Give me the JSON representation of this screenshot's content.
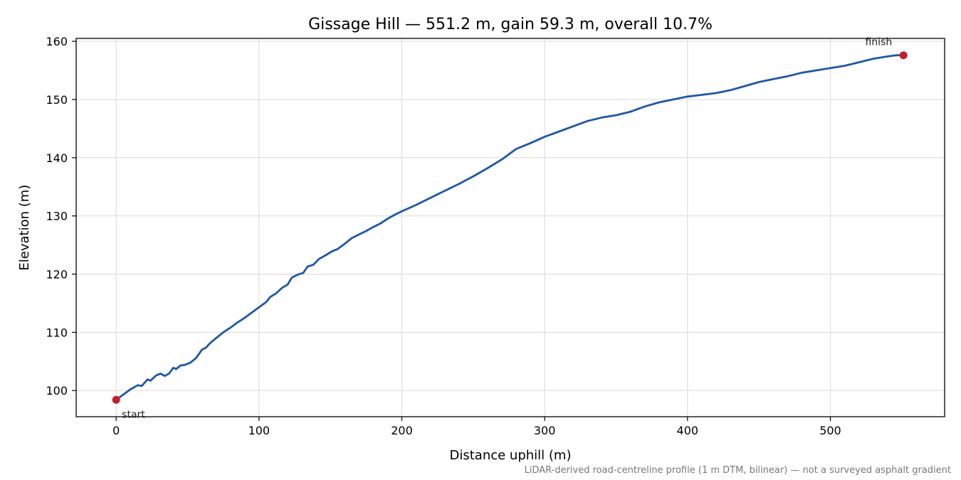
{
  "chart_data": {
    "type": "line",
    "title": "Gissage Hill — 551.2 m, gain 59.3 m, overall 10.7%",
    "xlabel": "Distance uphill (m)",
    "ylabel": "Elevation (m)",
    "xlim": [
      -28,
      580
    ],
    "ylim": [
      95.5,
      160.5
    ],
    "x_ticks": [
      0,
      100,
      200,
      300,
      400,
      500
    ],
    "x_tick_labels": [
      "0",
      "100",
      "200",
      "300",
      "400",
      "500"
    ],
    "y_ticks": [
      100,
      110,
      120,
      130,
      140,
      150,
      160
    ],
    "y_tick_labels": [
      "100",
      "110",
      "120",
      "130",
      "140",
      "150",
      "160"
    ],
    "grid": true,
    "line_color": "#1f57a6",
    "marker_color": "#c41e2a",
    "series": [
      {
        "points": [
          [
            0,
            98.4
          ],
          [
            5,
            99.3
          ],
          [
            10,
            100.2
          ],
          [
            15,
            100.9
          ],
          [
            18,
            100.8
          ],
          [
            22,
            101.9
          ],
          [
            24,
            101.7
          ],
          [
            28,
            102.6
          ],
          [
            31,
            102.9
          ],
          [
            34,
            102.5
          ],
          [
            37,
            102.9
          ],
          [
            40,
            103.9
          ],
          [
            42,
            103.7
          ],
          [
            45,
            104.3
          ],
          [
            48,
            104.4
          ],
          [
            52,
            104.8
          ],
          [
            56,
            105.6
          ],
          [
            60,
            107.0
          ],
          [
            63,
            107.4
          ],
          [
            66,
            108.2
          ],
          [
            70,
            109.0
          ],
          [
            75,
            110.0
          ],
          [
            80,
            110.8
          ],
          [
            85,
            111.7
          ],
          [
            90,
            112.5
          ],
          [
            95,
            113.4
          ],
          [
            100,
            114.3
          ],
          [
            105,
            115.2
          ],
          [
            108,
            116.1
          ],
          [
            112,
            116.7
          ],
          [
            116,
            117.6
          ],
          [
            120,
            118.2
          ],
          [
            123,
            119.4
          ],
          [
            127,
            119.9
          ],
          [
            131,
            120.2
          ],
          [
            134,
            121.3
          ],
          [
            138,
            121.6
          ],
          [
            142,
            122.6
          ],
          [
            147,
            123.3
          ],
          [
            151,
            123.9
          ],
          [
            155,
            124.3
          ],
          [
            160,
            125.2
          ],
          [
            165,
            126.2
          ],
          [
            170,
            126.8
          ],
          [
            175,
            127.4
          ],
          [
            180,
            128.1
          ],
          [
            185,
            128.7
          ],
          [
            190,
            129.5
          ],
          [
            195,
            130.2
          ],
          [
            200,
            130.8
          ],
          [
            210,
            131.9
          ],
          [
            220,
            133.1
          ],
          [
            230,
            134.3
          ],
          [
            240,
            135.5
          ],
          [
            250,
            136.8
          ],
          [
            260,
            138.2
          ],
          [
            270,
            139.7
          ],
          [
            280,
            141.5
          ],
          [
            290,
            142.5
          ],
          [
            300,
            143.6
          ],
          [
            310,
            144.5
          ],
          [
            320,
            145.4
          ],
          [
            330,
            146.3
          ],
          [
            340,
            146.9
          ],
          [
            350,
            147.3
          ],
          [
            360,
            147.9
          ],
          [
            370,
            148.8
          ],
          [
            380,
            149.5
          ],
          [
            390,
            150.0
          ],
          [
            400,
            150.5
          ],
          [
            410,
            150.8
          ],
          [
            420,
            151.1
          ],
          [
            430,
            151.6
          ],
          [
            440,
            152.3
          ],
          [
            450,
            153.0
          ],
          [
            460,
            153.5
          ],
          [
            470,
            154.0
          ],
          [
            480,
            154.6
          ],
          [
            490,
            155.0
          ],
          [
            500,
            155.4
          ],
          [
            510,
            155.8
          ],
          [
            520,
            156.4
          ],
          [
            530,
            157.0
          ],
          [
            540,
            157.4
          ],
          [
            546,
            157.6
          ],
          [
            551.2,
            157.6
          ]
        ]
      }
    ],
    "markers": [
      {
        "x": 0,
        "y": 98.4,
        "label": "start"
      },
      {
        "x": 551.2,
        "y": 157.6,
        "label": "finish"
      }
    ],
    "footnote": "LiDAR-derived road-centreline profile (1 m DTM, bilinear) — not a surveyed asphalt gradient"
  }
}
